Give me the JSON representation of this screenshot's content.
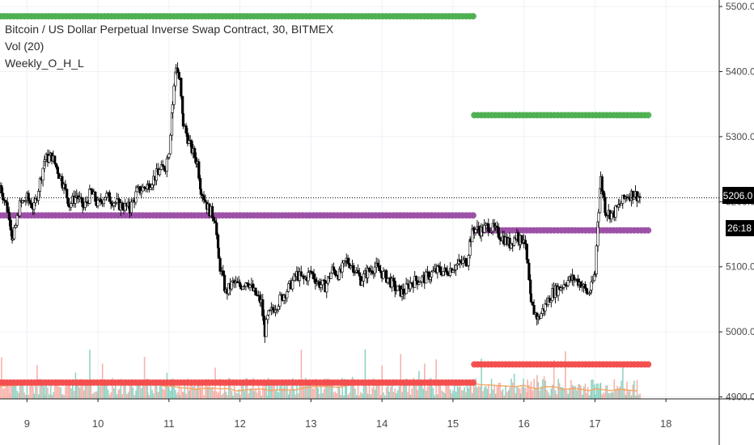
{
  "header": {
    "title": "Bitcoin / US Dollar Perpetual Inverse Swap Contract, 30, BITMEX",
    "indicator_vol": "Vol (20)",
    "indicator_weekly": "Weekly_O_H_L"
  },
  "price_tags": {
    "last_price": "5206.0",
    "countdown": "26:18"
  },
  "colors": {
    "green": "#4caf50",
    "purple": "#9c4ea6",
    "red": "#f44d4d",
    "candle": "#000000",
    "vol_up": "#7fcdbb",
    "vol_down": "#f7a59c",
    "vol_ma": "#f4a460",
    "grid": "#eef1f6",
    "axis_text": "#4a4a4a"
  },
  "chart_data": {
    "type": "candlestick",
    "y_axis": {
      "ticks": [
        4900,
        5000,
        5100,
        5200,
        5300,
        5400,
        5500
      ],
      "tick_labels": [
        "4900.0",
        "5000.0",
        "5100.0",
        "5200.0",
        "5300.0",
        "5400.0",
        "5500.0"
      ],
      "range": [
        4897,
        5510
      ]
    },
    "x_axis": {
      "ticks": [
        9,
        10,
        11,
        12,
        13,
        14,
        15,
        16,
        17,
        18
      ],
      "tick_labels": [
        "9",
        "10",
        "11",
        "12",
        "13",
        "14",
        "15",
        "16",
        "17",
        "18"
      ],
      "range": [
        8.62,
        18.75
      ]
    },
    "weekly_levels": [
      {
        "label": "high",
        "color": "green",
        "value": 5485,
        "from": 8.62,
        "to": 15.3
      },
      {
        "label": "open",
        "color": "purple",
        "value": 5179,
        "from": 8.62,
        "to": 15.3
      },
      {
        "label": "low",
        "color": "red",
        "value": 4922,
        "from": 8.62,
        "to": 15.3
      },
      {
        "label": "high",
        "color": "green",
        "value": 5333,
        "from": 15.3,
        "to": 17.75
      },
      {
        "label": "open",
        "color": "purple",
        "value": 5156,
        "from": 15.3,
        "to": 17.75
      },
      {
        "label": "low",
        "color": "red",
        "value": 4950,
        "from": 15.3,
        "to": 17.75
      }
    ],
    "price_path": [
      [
        8.62,
        5225
      ],
      [
        8.75,
        5180
      ],
      [
        8.8,
        5140
      ],
      [
        8.9,
        5195
      ],
      [
        9.0,
        5205
      ],
      [
        9.1,
        5190
      ],
      [
        9.25,
        5265
      ],
      [
        9.35,
        5270
      ],
      [
        9.5,
        5230
      ],
      [
        9.6,
        5195
      ],
      [
        9.7,
        5210
      ],
      [
        9.8,
        5190
      ],
      [
        9.9,
        5215
      ],
      [
        10.0,
        5195
      ],
      [
        10.1,
        5210
      ],
      [
        10.3,
        5195
      ],
      [
        10.45,
        5190
      ],
      [
        10.55,
        5215
      ],
      [
        10.7,
        5225
      ],
      [
        10.85,
        5245
      ],
      [
        10.95,
        5255
      ],
      [
        11.0,
        5280
      ],
      [
        11.05,
        5350
      ],
      [
        11.1,
        5410
      ],
      [
        11.15,
        5385
      ],
      [
        11.2,
        5320
      ],
      [
        11.3,
        5285
      ],
      [
        11.4,
        5260
      ],
      [
        11.45,
        5220
      ],
      [
        11.55,
        5190
      ],
      [
        11.65,
        5175
      ],
      [
        11.7,
        5110
      ],
      [
        11.8,
        5060
      ],
      [
        11.9,
        5075
      ],
      [
        12.0,
        5070
      ],
      [
        12.1,
        5080
      ],
      [
        12.2,
        5060
      ],
      [
        12.3,
        5045
      ],
      [
        12.35,
        5000
      ],
      [
        12.4,
        5025
      ],
      [
        12.5,
        5040
      ],
      [
        12.6,
        5055
      ],
      [
        12.7,
        5070
      ],
      [
        12.8,
        5088
      ],
      [
        12.9,
        5080
      ],
      [
        13.0,
        5092
      ],
      [
        13.1,
        5075
      ],
      [
        13.2,
        5070
      ],
      [
        13.3,
        5095
      ],
      [
        13.4,
        5088
      ],
      [
        13.5,
        5110
      ],
      [
        13.6,
        5100
      ],
      [
        13.7,
        5080
      ],
      [
        13.8,
        5092
      ],
      [
        13.9,
        5100
      ],
      [
        14.0,
        5090
      ],
      [
        14.1,
        5080
      ],
      [
        14.2,
        5065
      ],
      [
        14.3,
        5060
      ],
      [
        14.4,
        5075
      ],
      [
        14.5,
        5080
      ],
      [
        14.6,
        5082
      ],
      [
        14.7,
        5090
      ],
      [
        14.8,
        5095
      ],
      [
        14.9,
        5092
      ],
      [
        15.0,
        5100
      ],
      [
        15.1,
        5105
      ],
      [
        15.2,
        5110
      ],
      [
        15.25,
        5145
      ],
      [
        15.3,
        5158
      ],
      [
        15.4,
        5156
      ],
      [
        15.5,
        5163
      ],
      [
        15.6,
        5155
      ],
      [
        15.7,
        5145
      ],
      [
        15.8,
        5135
      ],
      [
        15.9,
        5150
      ],
      [
        15.95,
        5140
      ],
      [
        16.0,
        5145
      ],
      [
        16.05,
        5100
      ],
      [
        16.1,
        5040
      ],
      [
        16.2,
        5020
      ],
      [
        16.3,
        5040
      ],
      [
        16.4,
        5060
      ],
      [
        16.5,
        5068
      ],
      [
        16.6,
        5078
      ],
      [
        16.7,
        5082
      ],
      [
        16.8,
        5075
      ],
      [
        16.9,
        5058
      ],
      [
        16.95,
        5068
      ],
      [
        17.0,
        5090
      ],
      [
        17.05,
        5190
      ],
      [
        17.08,
        5235
      ],
      [
        17.15,
        5185
      ],
      [
        17.25,
        5180
      ],
      [
        17.35,
        5195
      ],
      [
        17.45,
        5210
      ],
      [
        17.55,
        5212
      ],
      [
        17.65,
        5206
      ]
    ]
  }
}
